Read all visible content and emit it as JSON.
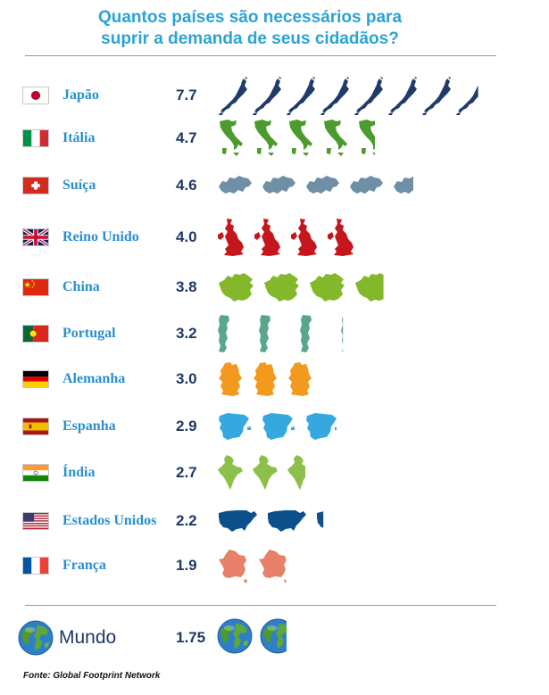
{
  "title_lines": [
    "Quantos países são necessários para",
    "suprir a demanda de seus cidadãos?"
  ],
  "source": "Fonte: Global Footprint Network",
  "chart_data": {
    "type": "pictograph",
    "title": "Quantos países são necessários para suprir a demanda de seus cidadãos?",
    "categories": [
      "Japão",
      "Itália",
      "Suíça",
      "Reino Unido",
      "China",
      "Portugal",
      "Alemanha",
      "Espanha",
      "Índia",
      "Estados Unidos",
      "França",
      "Mundo"
    ],
    "values": [
      7.7,
      4.7,
      4.6,
      4.0,
      3.8,
      3.2,
      3.0,
      2.9,
      2.7,
      2.2,
      1.9,
      1.75
    ],
    "rows": [
      {
        "name": "Japão",
        "value": "7.7",
        "n": 7.7,
        "color": "#1f3a6b",
        "shape": "japan",
        "flag": "japan"
      },
      {
        "name": "Itália",
        "value": "4.7",
        "n": 4.7,
        "color": "#4d9a2e",
        "shape": "italy",
        "flag": "italy"
      },
      {
        "name": "Suíça",
        "value": "4.6",
        "n": 4.6,
        "color": "#6f8fa6",
        "shape": "swiss",
        "flag": "swiss"
      },
      {
        "name": "Reino Unido",
        "value": "4.0",
        "n": 4.0,
        "color": "#c4161c",
        "shape": "uk",
        "flag": "uk"
      },
      {
        "name": "China",
        "value": "3.8",
        "n": 3.8,
        "color": "#83b82a",
        "shape": "china",
        "flag": "china"
      },
      {
        "name": "Portugal",
        "value": "3.2",
        "n": 3.2,
        "color": "#5aa68a",
        "shape": "portugal",
        "flag": "portugal"
      },
      {
        "name": "Alemanha",
        "value": "3.0",
        "n": 3.0,
        "color": "#f39a1e",
        "shape": "germany",
        "flag": "germany"
      },
      {
        "name": "Espanha",
        "value": "2.9",
        "n": 2.9,
        "color": "#35a8e0",
        "shape": "spain",
        "flag": "spain"
      },
      {
        "name": "Índia",
        "value": "2.7",
        "n": 2.7,
        "color": "#8cc04a",
        "shape": "india",
        "flag": "india"
      },
      {
        "name": "Estados Unidos",
        "value": "2.2",
        "n": 2.2,
        "color": "#0d4f8b",
        "shape": "usa",
        "flag": "usa"
      },
      {
        "name": "França",
        "value": "1.9",
        "n": 1.9,
        "color": "#e8806a",
        "shape": "france",
        "flag": "france"
      }
    ],
    "world": {
      "name": "Mundo",
      "value": "1.75",
      "n": 1.75,
      "shape": "globe"
    }
  }
}
